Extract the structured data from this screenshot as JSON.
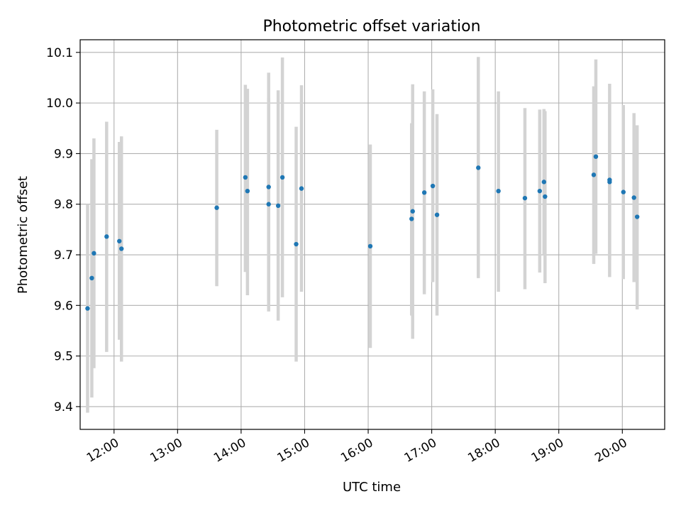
{
  "chart_data": {
    "type": "scatter",
    "title": "Photometric offset variation",
    "xlabel": "UTC time",
    "ylabel": "Photometric offset",
    "x_unit": "hours UTC",
    "xlim": [
      "11:28",
      "20:40"
    ],
    "ylim": [
      9.355,
      10.125
    ],
    "x_ticks": [
      "12:00",
      "13:00",
      "14:00",
      "15:00",
      "16:00",
      "17:00",
      "18:00",
      "19:00",
      "20:00"
    ],
    "y_ticks": [
      "9.4",
      "9.5",
      "9.6",
      "9.7",
      "9.8",
      "9.9",
      "10.0",
      "10.1"
    ],
    "grid": true,
    "colors": {
      "point": "#1f77b4",
      "errorbar": "#d3d3d3",
      "grid": "#b0b0b0"
    },
    "points": [
      {
        "x": "11:35",
        "y": 9.594,
        "lo": 9.388,
        "hi": 9.8
      },
      {
        "x": "11:39",
        "y": 9.654,
        "lo": 9.418,
        "hi": 9.889
      },
      {
        "x": "11:41",
        "y": 9.703,
        "lo": 9.476,
        "hi": 9.93
      },
      {
        "x": "11:53",
        "y": 9.736,
        "lo": 9.508,
        "hi": 9.963
      },
      {
        "x": "12:05",
        "y": 9.727,
        "lo": 9.532,
        "hi": 9.923
      },
      {
        "x": "12:07",
        "y": 9.712,
        "lo": 9.489,
        "hi": 9.934
      },
      {
        "x": "13:37",
        "y": 9.793,
        "lo": 9.638,
        "hi": 9.947
      },
      {
        "x": "14:04",
        "y": 9.853,
        "lo": 9.666,
        "hi": 10.036
      },
      {
        "x": "14:06",
        "y": 9.826,
        "lo": 9.62,
        "hi": 10.028
      },
      {
        "x": "14:26",
        "y": 9.834,
        "lo": 9.608,
        "hi": 10.06
      },
      {
        "x": "14:26",
        "y": 9.8,
        "lo": 9.588,
        "hi": 10.01
      },
      {
        "x": "14:35",
        "y": 9.797,
        "lo": 9.57,
        "hi": 10.025
      },
      {
        "x": "14:39",
        "y": 9.853,
        "lo": 9.616,
        "hi": 10.09
      },
      {
        "x": "14:52",
        "y": 9.721,
        "lo": 9.489,
        "hi": 9.953
      },
      {
        "x": "14:57",
        "y": 9.831,
        "lo": 9.627,
        "hi": 10.035
      },
      {
        "x": "16:02",
        "y": 9.717,
        "lo": 9.516,
        "hi": 9.918
      },
      {
        "x": "16:41",
        "y": 9.771,
        "lo": 9.58,
        "hi": 9.96
      },
      {
        "x": "16:42",
        "y": 9.786,
        "lo": 9.534,
        "hi": 10.037
      },
      {
        "x": "16:53",
        "y": 9.823,
        "lo": 9.622,
        "hi": 10.023
      },
      {
        "x": "17:01",
        "y": 9.836,
        "lo": 9.646,
        "hi": 10.027
      },
      {
        "x": "17:05",
        "y": 9.779,
        "lo": 9.58,
        "hi": 9.978
      },
      {
        "x": "17:44",
        "y": 9.872,
        "lo": 9.654,
        "hi": 10.091
      },
      {
        "x": "18:03",
        "y": 9.826,
        "lo": 9.627,
        "hi": 10.023
      },
      {
        "x": "18:28",
        "y": 9.812,
        "lo": 9.632,
        "hi": 9.99
      },
      {
        "x": "18:42",
        "y": 9.826,
        "lo": 9.665,
        "hi": 9.987
      },
      {
        "x": "18:46",
        "y": 9.844,
        "lo": 9.7,
        "hi": 9.988
      },
      {
        "x": "18:47",
        "y": 9.815,
        "lo": 9.644,
        "hi": 9.984
      },
      {
        "x": "19:33",
        "y": 9.858,
        "lo": 9.682,
        "hi": 10.033
      },
      {
        "x": "19:35",
        "y": 9.894,
        "lo": 9.702,
        "hi": 10.086
      },
      {
        "x": "19:48",
        "y": 9.848,
        "lo": 9.656,
        "hi": 10.038
      },
      {
        "x": "19:48",
        "y": 9.844,
        "lo": 9.69,
        "hi": 9.998
      },
      {
        "x": "20:01",
        "y": 9.824,
        "lo": 9.652,
        "hi": 9.996
      },
      {
        "x": "20:11",
        "y": 9.813,
        "lo": 9.646,
        "hi": 9.98
      },
      {
        "x": "20:14",
        "y": 9.775,
        "lo": 9.592,
        "hi": 9.956
      }
    ]
  }
}
